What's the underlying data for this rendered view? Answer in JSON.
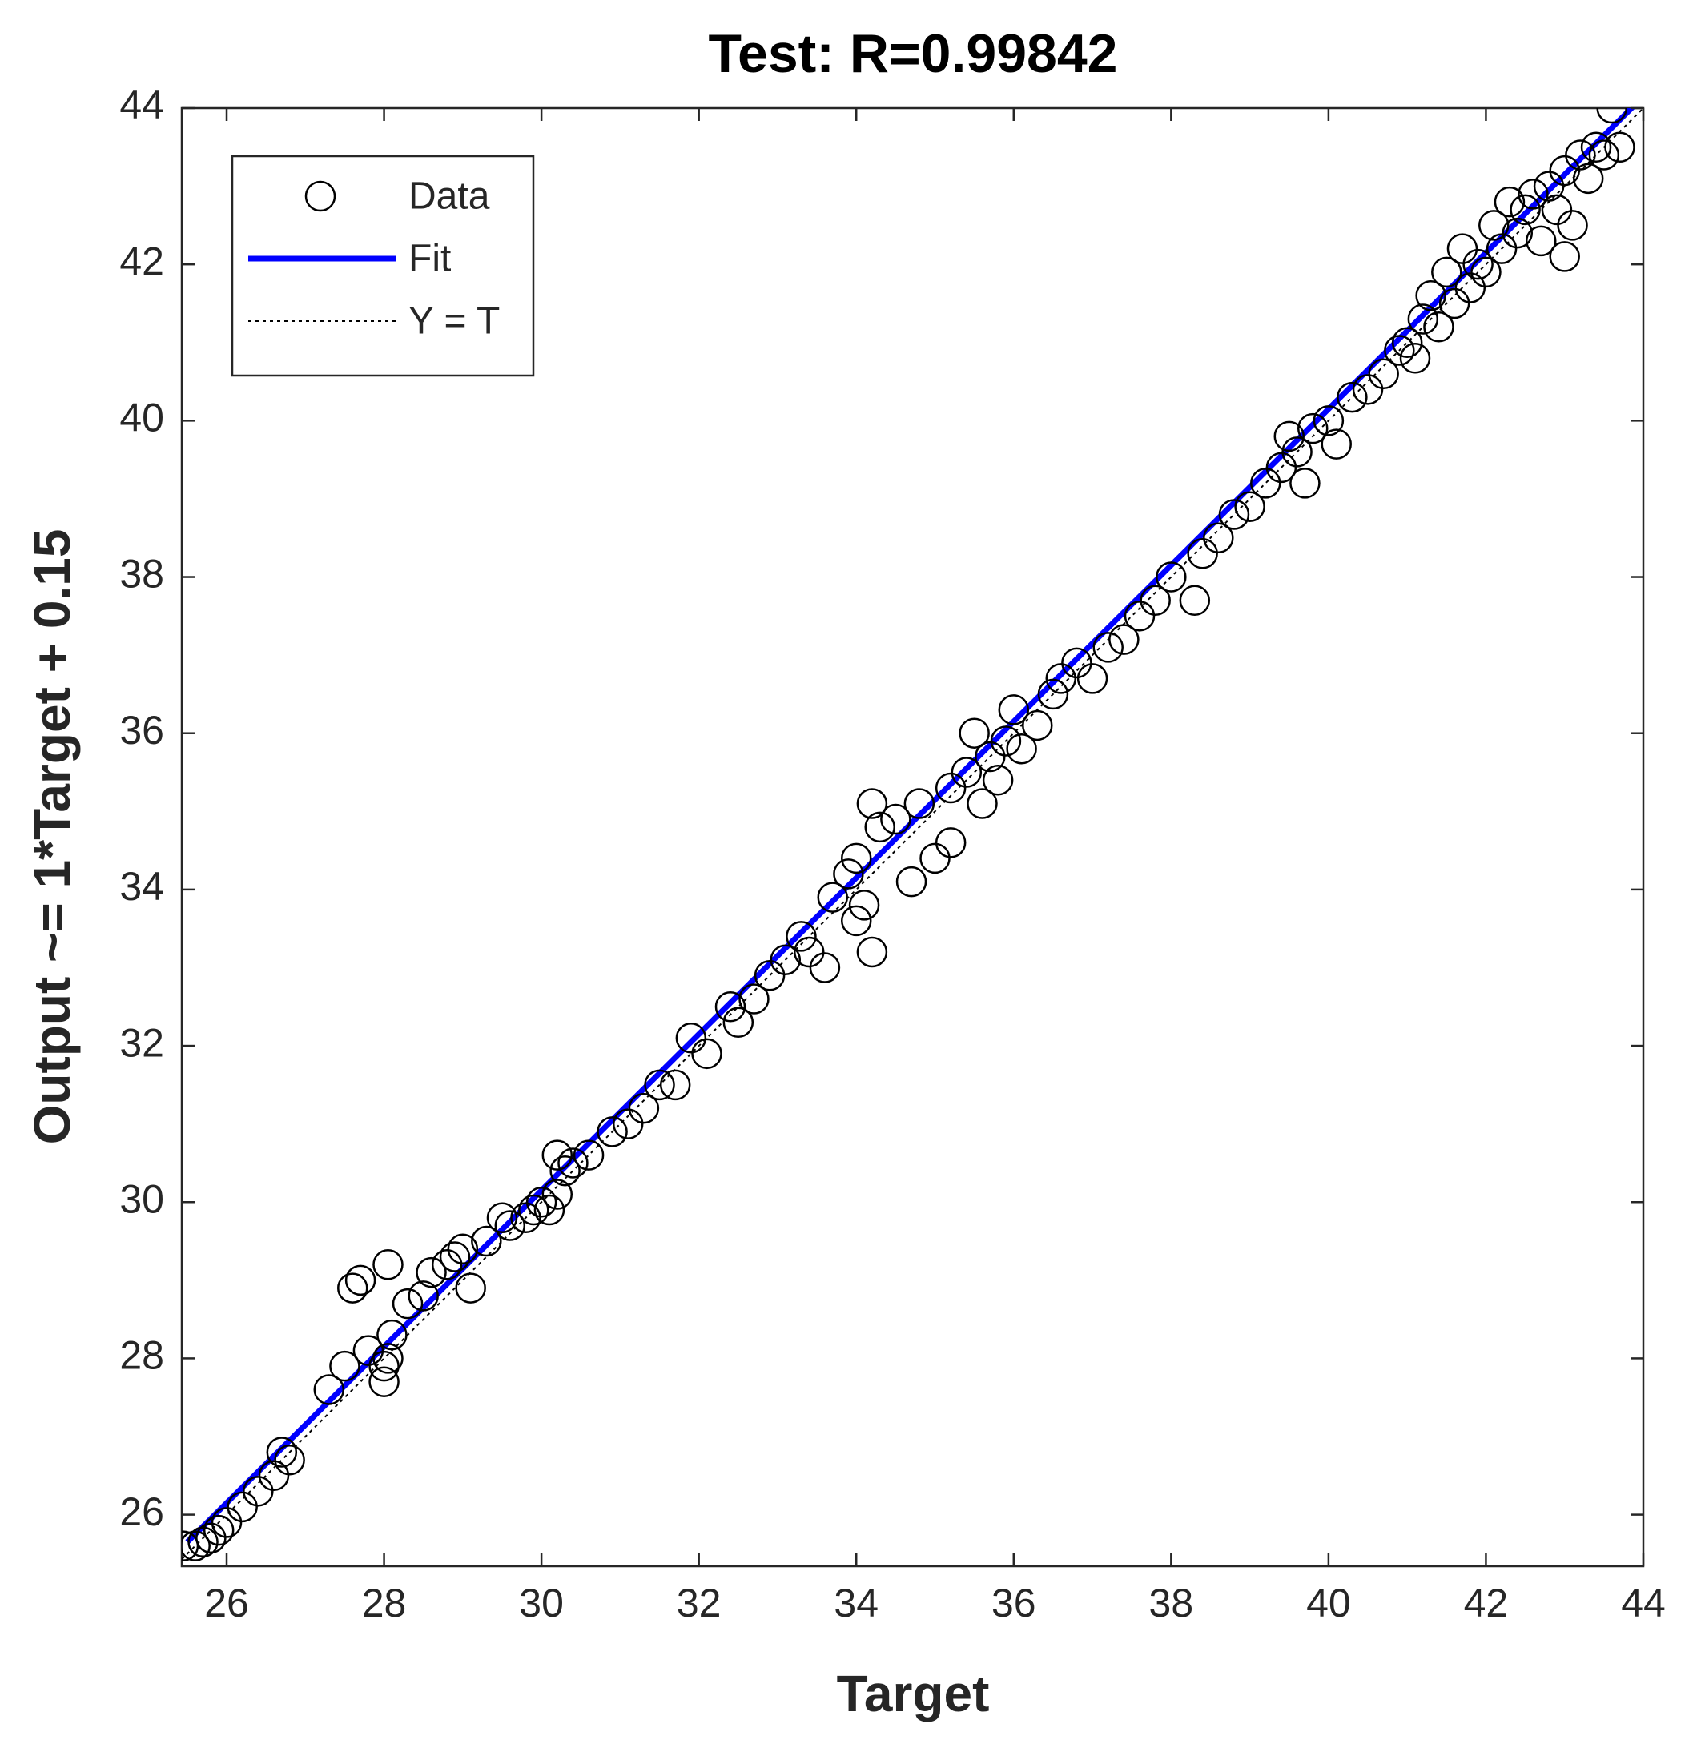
{
  "chart_data": {
    "type": "scatter",
    "title": "Test: R=0.99842",
    "x_label": "Target",
    "y_label": "Output ~= 1*Target + 0.15",
    "xlim": [
      25.43,
      44
    ],
    "ylim": [
      25.34,
      44
    ],
    "xticks": [
      26,
      28,
      30,
      32,
      34,
      36,
      38,
      40,
      42,
      44
    ],
    "yticks": [
      26,
      28,
      30,
      32,
      34,
      36,
      38,
      40,
      42,
      44
    ],
    "legend": "upper left",
    "series": [
      {
        "name": "Data",
        "color": "#000000",
        "style": "marker",
        "x": [
          25.45,
          25.6,
          25.7,
          25.8,
          25.9,
          26.0,
          26.2,
          26.4,
          26.6,
          26.7,
          26.8,
          27.3,
          27.5,
          27.6,
          27.7,
          27.8,
          28.0,
          28.0,
          28.05,
          28.1,
          28.05,
          28.3,
          28.5,
          28.6,
          28.8,
          28.9,
          29.0,
          29.1,
          29.3,
          29.5,
          29.6,
          29.8,
          29.9,
          30.0,
          30.1,
          30.2,
          30.2,
          30.3,
          30.4,
          30.6,
          30.9,
          31.1,
          31.3,
          31.5,
          31.7,
          31.9,
          32.1,
          32.4,
          32.5,
          32.7,
          32.9,
          33.1,
          33.3,
          33.4,
          33.6,
          33.7,
          33.9,
          34.0,
          34.0,
          34.1,
          34.2,
          34.2,
          34.3,
          34.5,
          34.7,
          34.8,
          35.0,
          35.2,
          35.2,
          35.4,
          35.5,
          35.6,
          35.7,
          35.8,
          35.9,
          36.0,
          36.1,
          36.3,
          36.5,
          36.6,
          36.8,
          37.0,
          37.2,
          37.4,
          37.6,
          37.8,
          38.0,
          38.3,
          38.4,
          38.6,
          38.8,
          39.0,
          39.2,
          39.4,
          39.5,
          39.6,
          39.7,
          39.8,
          40.0,
          40.1,
          40.3,
          40.5,
          40.7,
          40.9,
          41.0,
          41.1,
          41.2,
          41.3,
          41.4,
          41.5,
          41.6,
          41.7,
          41.8,
          41.9,
          42.0,
          42.1,
          42.2,
          42.3,
          42.4,
          42.5,
          42.6,
          42.7,
          42.8,
          42.9,
          43.0,
          43.0,
          43.1,
          43.2,
          43.3,
          43.4,
          43.5,
          43.6,
          43.7
        ],
        "values": [
          25.6,
          25.6,
          25.65,
          25.7,
          25.8,
          25.9,
          26.1,
          26.3,
          26.5,
          26.8,
          26.7,
          27.6,
          27.9,
          28.9,
          29.0,
          28.1,
          27.7,
          27.9,
          28.0,
          28.3,
          29.2,
          28.7,
          28.8,
          29.1,
          29.2,
          29.3,
          29.4,
          28.9,
          29.5,
          29.8,
          29.7,
          29.8,
          29.9,
          30.0,
          29.9,
          30.1,
          30.6,
          30.4,
          30.5,
          30.6,
          30.9,
          31.0,
          31.2,
          31.5,
          31.5,
          32.1,
          31.9,
          32.5,
          32.3,
          32.6,
          32.9,
          33.1,
          33.4,
          33.2,
          33.0,
          33.9,
          34.2,
          34.4,
          33.6,
          33.8,
          33.2,
          35.1,
          34.8,
          34.9,
          34.1,
          35.1,
          34.4,
          34.6,
          35.3,
          35.5,
          36.0,
          35.1,
          35.7,
          35.4,
          35.9,
          36.3,
          35.8,
          36.1,
          36.5,
          36.7,
          36.9,
          36.7,
          37.1,
          37.2,
          37.5,
          37.7,
          38.0,
          37.7,
          38.3,
          38.5,
          38.8,
          38.9,
          39.2,
          39.4,
          39.8,
          39.6,
          39.2,
          39.9,
          40.0,
          39.7,
          40.3,
          40.4,
          40.6,
          40.9,
          41.0,
          40.8,
          41.3,
          41.6,
          41.2,
          41.9,
          41.5,
          42.2,
          41.7,
          42.0,
          41.9,
          42.5,
          42.2,
          42.8,
          42.4,
          42.7,
          42.9,
          42.3,
          43.0,
          42.7,
          42.1,
          43.2,
          42.5,
          43.4,
          43.1,
          43.5,
          43.4,
          44.0,
          43.5
        ]
      },
      {
        "name": "Fit",
        "color": "#0000ff",
        "style": "line",
        "x": [
          25.5,
          44
        ],
        "values": [
          25.65,
          44.15
        ]
      },
      {
        "name": "Y = T",
        "color": "#000000",
        "style": "dotted",
        "x": [
          25.43,
          44
        ],
        "values": [
          25.43,
          44
        ]
      }
    ]
  }
}
